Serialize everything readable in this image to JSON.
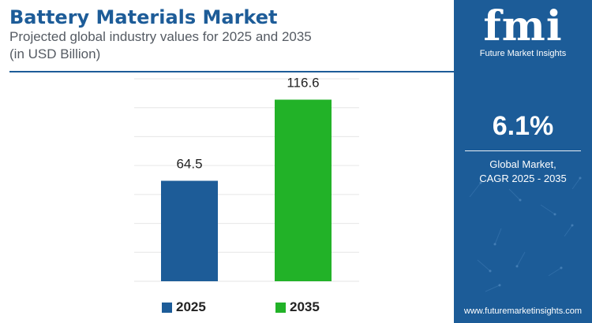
{
  "header": {
    "title": "Battery Materials Market",
    "subtitle": "Projected global industry values for 2025 and 2035",
    "unit": "(in USD Billion)"
  },
  "chart_data": {
    "type": "bar",
    "title": "Battery Materials Market",
    "subtitle": "Projected global industry values for 2025 and 2035",
    "xlabel": "",
    "ylabel": "",
    "categories": [
      "2025",
      "2035"
    ],
    "values": [
      64.5,
      116.6
    ],
    "value_labels": [
      "64.5",
      "116.6"
    ],
    "ylim": [
      0,
      130
    ],
    "grid": true,
    "legend": "bottom",
    "colors": [
      "#1d5c98",
      "#22b228"
    ]
  },
  "legend": {
    "items": [
      {
        "label": "2025",
        "color": "#1d5c98"
      },
      {
        "label": "2035",
        "color": "#22b228"
      }
    ]
  },
  "side_panel": {
    "logo": "fmi",
    "tagline": "Future Market Insights",
    "cagr_value": "6.1%",
    "cagr_label_line1": "Global Market,",
    "cagr_label_line2": "CAGR 2025 - 2035",
    "website": "www.futuremarketinsights.com",
    "background_color": "#1c5c98"
  }
}
